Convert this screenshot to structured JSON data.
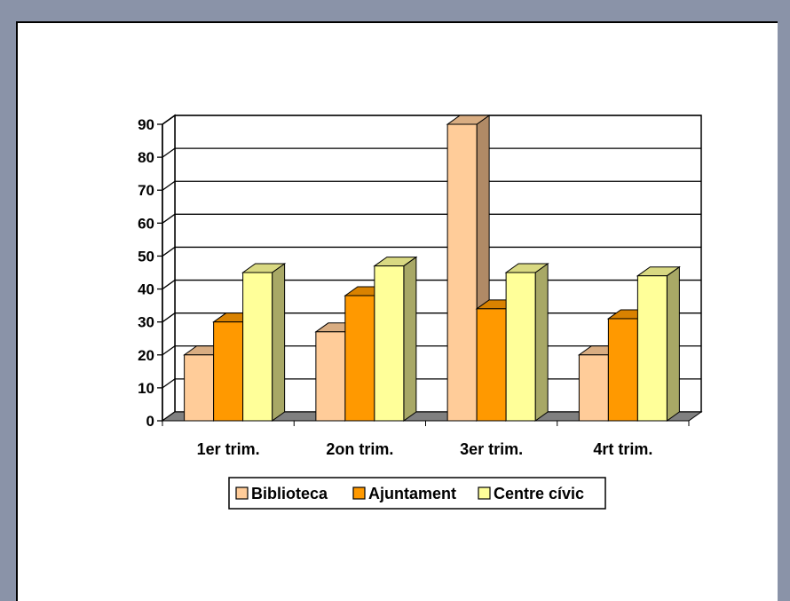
{
  "chart_data": {
    "type": "bar",
    "categories": [
      "1er trim.",
      "2on trim.",
      "3er trim.",
      "4rt trim."
    ],
    "series": [
      {
        "name": "Biblioteca",
        "values": [
          20,
          27,
          90,
          20
        ]
      },
      {
        "name": "Ajuntament",
        "values": [
          30,
          38,
          34,
          31
        ]
      },
      {
        "name": "Centre cívic",
        "values": [
          45,
          47,
          45,
          44
        ]
      }
    ],
    "ylim": [
      0,
      90
    ],
    "yticks": [
      0,
      10,
      20,
      30,
      40,
      50,
      60,
      70,
      80,
      90
    ],
    "grid": true,
    "legend_position": "bottom",
    "three_d": true,
    "colors": {
      "series": [
        "#ffcc99",
        "#ff9900",
        "#ffff99"
      ],
      "series_side": [
        "#b08a66",
        "#b06a00",
        "#a8a866"
      ],
      "series_top": [
        "#d9ad82",
        "#d98200",
        "#d9d982"
      ],
      "floor": "#808080",
      "grid": "#000000"
    }
  }
}
